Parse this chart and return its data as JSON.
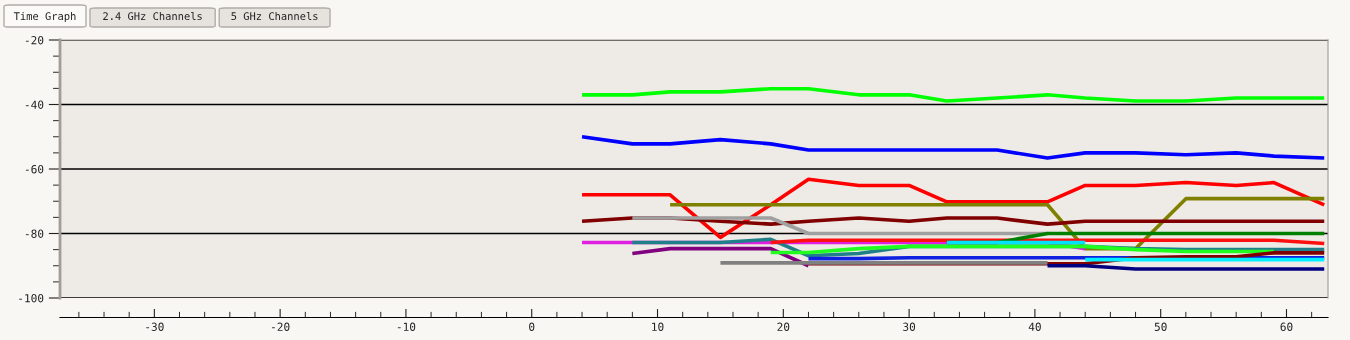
{
  "chart_data": {
    "type": "line",
    "annotations": [
      "Time Graph",
      "2.4 GHz Channels",
      "5 GHz Channels"
    ],
    "x": [
      4,
      8,
      11,
      15,
      19,
      22,
      26,
      30,
      33,
      37,
      41,
      44,
      48,
      52,
      56,
      59,
      63
    ],
    "xlim": [
      -37.5,
      63.3
    ],
    "ylim": [
      -100,
      -20
    ],
    "xticks": [
      -30,
      -20,
      -10,
      0,
      10,
      20,
      30,
      40,
      50,
      60
    ],
    "yticks": [
      -20,
      -40,
      -60,
      -80,
      -100
    ],
    "grid": "y",
    "marker": "none",
    "line_style": "solid",
    "series": [
      {
        "color": "#00ff00",
        "values": [
          -37.0,
          -37.0,
          -36.1,
          -36.1,
          -35.1,
          -35.1,
          -37.0,
          -37.0,
          -38.9,
          -38.0,
          -37.0,
          -38.0,
          -38.9,
          -38.9,
          -38.0,
          -38.0,
          -38.0
        ]
      },
      {
        "color": "#0000ff",
        "values": [
          -50.0,
          -52.2,
          -52.2,
          -50.9,
          -52.2,
          -54.1,
          -54.1,
          -54.1,
          -54.1,
          -54.1,
          -56.6,
          -55.0,
          -55.0,
          -55.6,
          -55.0,
          -56.0,
          -56.6
        ]
      },
      {
        "color": "#ff0000",
        "values": [
          -68.0,
          -68.0,
          -68.0,
          -81.2,
          -71.1,
          -63.2,
          -65.1,
          -65.1,
          -70.2,
          -70.2,
          -70.2,
          -65.1,
          -65.1,
          -64.2,
          -65.1,
          -64.2,
          -71.1
        ]
      },
      {
        "color": "#808000",
        "values": [
          null,
          null,
          -71.1,
          -71.1,
          -71.1,
          -71.1,
          -71.1,
          -71.1,
          -71.1,
          -71.1,
          -71.1,
          -84.7,
          -84.7,
          -69.2,
          -69.2,
          -69.2,
          -69.2
        ]
      },
      {
        "color": "#800000",
        "values": [
          -76.2,
          -75.2,
          -75.2,
          -76.2,
          -77.1,
          -76.2,
          -75.2,
          -76.2,
          -75.2,
          -75.2,
          -77.1,
          -76.2,
          -76.2,
          -76.2,
          -76.2,
          -76.2,
          -76.2
        ]
      },
      {
        "color": "#a0a0a0",
        "values": [
          null,
          -75.2,
          -75.2,
          -75.2,
          -75.2,
          -80.0,
          -80.0,
          -80.0,
          -80.0,
          -80.0,
          -80.0,
          null,
          null,
          null,
          null,
          null,
          null
        ]
      },
      {
        "color": "#e020e0",
        "values": [
          -82.8,
          -82.8,
          -82.8,
          -82.8,
          -82.8,
          -82.8,
          -82.8,
          -82.8,
          -82.8,
          -82.8,
          -82.8,
          -84.7,
          null,
          null,
          null,
          null,
          null
        ]
      },
      {
        "color": "#20808a",
        "values": [
          null,
          -82.8,
          -82.8,
          -82.8,
          -81.8,
          -86.9,
          -86.2,
          -84.0,
          -84.0,
          -84.0,
          -84.0,
          -84.0,
          -84.7,
          -85.0,
          -85.0,
          -85.0,
          -85.0
        ]
      },
      {
        "color": "#800080",
        "values": [
          null,
          -86.2,
          -84.7,
          -84.7,
          -84.7,
          -90.0,
          null,
          null,
          null,
          null,
          null,
          null,
          null,
          null,
          null,
          null,
          null
        ]
      },
      {
        "color": "#ff1010",
        "values": [
          null,
          null,
          null,
          null,
          -82.8,
          -82.1,
          -82.1,
          -82.1,
          -82.1,
          -82.1,
          -82.1,
          -82.1,
          -82.1,
          -82.1,
          -82.1,
          -82.1,
          -83.1
        ]
      },
      {
        "color": "#20ff20",
        "values": [
          null,
          null,
          null,
          null,
          -85.9,
          -85.9,
          -84.7,
          -84.0,
          -84.0,
          -84.0,
          -84.0,
          -84.0,
          -85.0,
          -85.6,
          -85.6,
          -85.6,
          null
        ]
      },
      {
        "color": "#008000",
        "values": [
          null,
          null,
          null,
          null,
          null,
          null,
          null,
          null,
          -82.8,
          -82.8,
          -80.0,
          -80.0,
          -80.0,
          -80.0,
          -80.0,
          -80.0,
          -80.0
        ]
      },
      {
        "color": "#1020e0",
        "values": [
          null,
          null,
          null,
          null,
          null,
          -87.8,
          -87.8,
          -87.5,
          -87.5,
          -87.5,
          -87.5,
          -87.5,
          -87.5,
          -87.5,
          -87.5,
          -87.5,
          -87.5
        ]
      },
      {
        "color": "#800000",
        "values": [
          null,
          null,
          null,
          null,
          null,
          -89.4,
          -89.4,
          -89.4,
          -89.4,
          -89.4,
          -89.4,
          -89.4,
          -87.5,
          -87.2,
          -87.2,
          -86.0,
          -86.0
        ]
      },
      {
        "color": "#808080",
        "values": [
          null,
          null,
          null,
          -89.1,
          -89.1,
          -89.1,
          -89.1,
          -89.1,
          -89.1,
          -89.1,
          -89.1,
          null,
          null,
          null,
          null,
          null,
          null
        ]
      },
      {
        "color": "#00e0ff",
        "values": [
          null,
          null,
          null,
          null,
          null,
          null,
          null,
          null,
          -82.8,
          -82.8,
          -82.8,
          -82.8,
          null,
          null,
          null,
          null,
          null
        ]
      },
      {
        "color": "#00f0ff",
        "values": [
          null,
          null,
          null,
          null,
          null,
          null,
          null,
          null,
          null,
          null,
          null,
          -88.1,
          -88.1,
          -88.1,
          -88.1,
          -88.1,
          -88.1
        ]
      },
      {
        "color": "#000080",
        "values": [
          null,
          null,
          null,
          null,
          null,
          null,
          null,
          null,
          null,
          null,
          -90.0,
          -90.0,
          -91.0,
          -91.0,
          -91.0,
          -91.0,
          -91.0
        ]
      }
    ]
  }
}
